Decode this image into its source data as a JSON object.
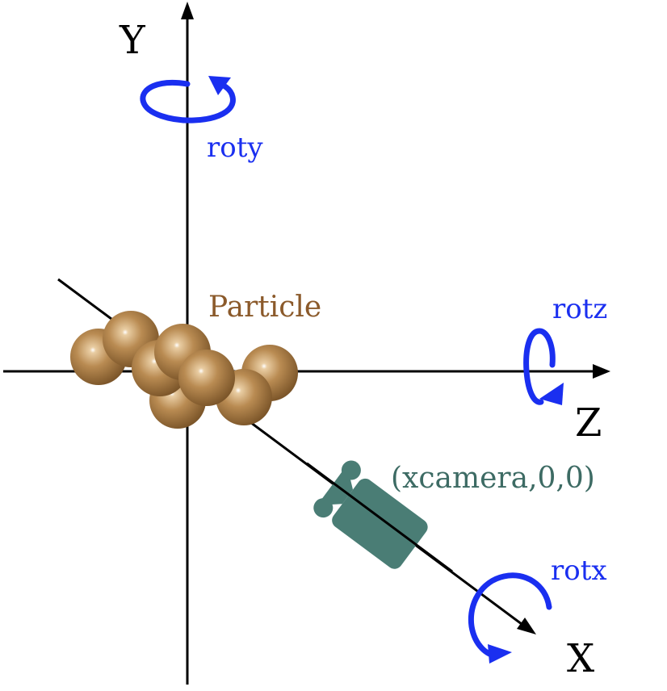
{
  "axes": {
    "y_label": "Y",
    "z_label": "Z",
    "x_label": "X"
  },
  "rotations": {
    "roty": "roty",
    "rotz": "rotz",
    "rotx": "rotx"
  },
  "particle": {
    "label": "Particle"
  },
  "camera": {
    "label": "(xcamera,0,0)"
  },
  "colors": {
    "axis": "#000000",
    "rotation": "#1a2ff0",
    "particle_label": "#8b5a2b",
    "sphere": "#a87b45",
    "camera": "#4a7d75",
    "camera_label": "#3d6b64"
  }
}
